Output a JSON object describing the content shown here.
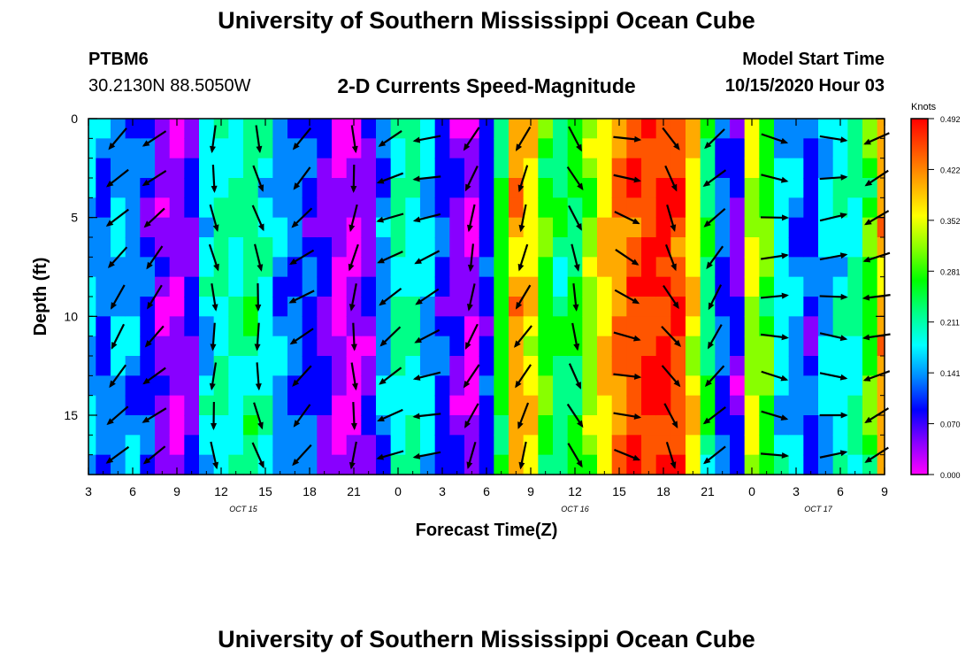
{
  "header": {
    "title": "University of Southern Mississippi Ocean Cube",
    "station_id": "PTBM6",
    "station_coords": "30.2130N 88.5050W",
    "chart_title": "2-D Currents Speed-Magnitude",
    "model_label": "Model Start Time",
    "model_time": "10/15/2020 Hour 03"
  },
  "footer": {
    "title": "University of Southern Mississippi Ocean Cube"
  },
  "chart_data": {
    "type": "heatmap",
    "title": "2-D Currents Speed-Magnitude",
    "xlabel": "Forecast Time(Z)",
    "ylabel": "Depth (ft)",
    "x_ticks": [
      "3",
      "6",
      "9",
      "12",
      "15",
      "18",
      "21",
      "0",
      "3",
      "6",
      "9",
      "12",
      "15",
      "18",
      "21",
      "0",
      "3",
      "6",
      "9"
    ],
    "x_hours": [
      3,
      6,
      9,
      12,
      15,
      18,
      21,
      24,
      27,
      30,
      33,
      36,
      39,
      42,
      45,
      48,
      51,
      54,
      57
    ],
    "date_labels": [
      {
        "text": "OCT 15",
        "hour": 13.5
      },
      {
        "text": "OCT 16",
        "hour": 36.0
      },
      {
        "text": "OCT 17",
        "hour": 52.5
      }
    ],
    "y_ticks": [
      0,
      5,
      10,
      15
    ],
    "ylim": [
      0,
      18
    ],
    "xlim": [
      3,
      57
    ],
    "colorbar": {
      "label": "Knots",
      "ticks": [
        "0.492",
        "0.422",
        "0.352",
        "0.281",
        "0.211",
        "0.141",
        "0.070",
        "0.000"
      ],
      "min": 0.0,
      "max": 0.492,
      "colors": [
        "#ff00ff",
        "#8800ff",
        "#0000ff",
        "#0088ff",
        "#00ffff",
        "#00ff88",
        "#00ff00",
        "#88ff00",
        "#ffff00",
        "#ffaa00",
        "#ff5500",
        "#ff0000"
      ]
    },
    "speed_profile": [
      {
        "hour": 3,
        "speed": 0.16
      },
      {
        "hour": 4,
        "speed": 0.12
      },
      {
        "hour": 5,
        "speed": 0.15
      },
      {
        "hour": 6,
        "speed": 0.13
      },
      {
        "hour": 7,
        "speed": 0.09
      },
      {
        "hour": 8,
        "speed": 0.04
      },
      {
        "hour": 9,
        "speed": 0.03
      },
      {
        "hour": 10,
        "speed": 0.07
      },
      {
        "hour": 11,
        "speed": 0.17
      },
      {
        "hour": 12,
        "speed": 0.21
      },
      {
        "hour": 13,
        "speed": 0.2
      },
      {
        "hour": 14,
        "speed": 0.22
      },
      {
        "hour": 15,
        "speed": 0.19
      },
      {
        "hour": 16,
        "speed": 0.14
      },
      {
        "hour": 17,
        "speed": 0.12
      },
      {
        "hour": 18,
        "speed": 0.1
      },
      {
        "hour": 19,
        "speed": 0.07
      },
      {
        "hour": 20,
        "speed": 0.03
      },
      {
        "hour": 21,
        "speed": 0.02
      },
      {
        "hour": 22,
        "speed": 0.05
      },
      {
        "hour": 23,
        "speed": 0.13
      },
      {
        "hour": 24,
        "speed": 0.21
      },
      {
        "hour": 25,
        "speed": 0.2
      },
      {
        "hour": 26,
        "speed": 0.16
      },
      {
        "hour": 27,
        "speed": 0.1
      },
      {
        "hour": 28,
        "speed": 0.05
      },
      {
        "hour": 29,
        "speed": 0.02
      },
      {
        "hour": 30,
        "speed": 0.09
      },
      {
        "hour": 31,
        "speed": 0.26
      },
      {
        "hour": 32,
        "speed": 0.4
      },
      {
        "hour": 33,
        "speed": 0.37
      },
      {
        "hour": 34,
        "speed": 0.28
      },
      {
        "hour": 35,
        "speed": 0.22
      },
      {
        "hour": 36,
        "speed": 0.25
      },
      {
        "hour": 37,
        "speed": 0.31
      },
      {
        "hour": 38,
        "speed": 0.38
      },
      {
        "hour": 39,
        "speed": 0.42
      },
      {
        "hour": 40,
        "speed": 0.45
      },
      {
        "hour": 41,
        "speed": 0.47
      },
      {
        "hour": 42,
        "speed": 0.48
      },
      {
        "hour": 43,
        "speed": 0.46
      },
      {
        "hour": 44,
        "speed": 0.36
      },
      {
        "hour": 45,
        "speed": 0.24
      },
      {
        "hour": 46,
        "speed": 0.12
      },
      {
        "hour": 47,
        "speed": 0.06
      },
      {
        "hour": 48,
        "speed": 0.34
      },
      {
        "hour": 49,
        "speed": 0.28
      },
      {
        "hour": 50,
        "speed": 0.17
      },
      {
        "hour": 51,
        "speed": 0.14
      },
      {
        "hour": 52,
        "speed": 0.1
      },
      {
        "hour": 53,
        "speed": 0.16
      },
      {
        "hour": 54,
        "speed": 0.19
      },
      {
        "hour": 55,
        "speed": 0.21
      },
      {
        "hour": 56,
        "speed": 0.28
      },
      {
        "hour": 57,
        "speed": 0.4
      }
    ],
    "vectors": [
      {
        "hour": 5,
        "angle": 220
      },
      {
        "hour": 7.5,
        "angle": 225
      },
      {
        "hour": 11.5,
        "angle": 175
      },
      {
        "hour": 14.5,
        "angle": 170
      },
      {
        "hour": 17.5,
        "angle": 230
      },
      {
        "hour": 21,
        "angle": 185
      },
      {
        "hour": 23.5,
        "angle": 240
      },
      {
        "hour": 26,
        "angle": 250
      },
      {
        "hour": 29,
        "angle": 200
      },
      {
        "hour": 32.5,
        "angle": 205
      },
      {
        "hour": 36,
        "angle": 160
      },
      {
        "hour": 39.5,
        "angle": 110
      },
      {
        "hour": 42.5,
        "angle": 150
      },
      {
        "hour": 45.5,
        "angle": 220
      },
      {
        "hour": 49.5,
        "angle": 95
      },
      {
        "hour": 53.5,
        "angle": 90
      },
      {
        "hour": 56.5,
        "angle": 250
      }
    ]
  }
}
